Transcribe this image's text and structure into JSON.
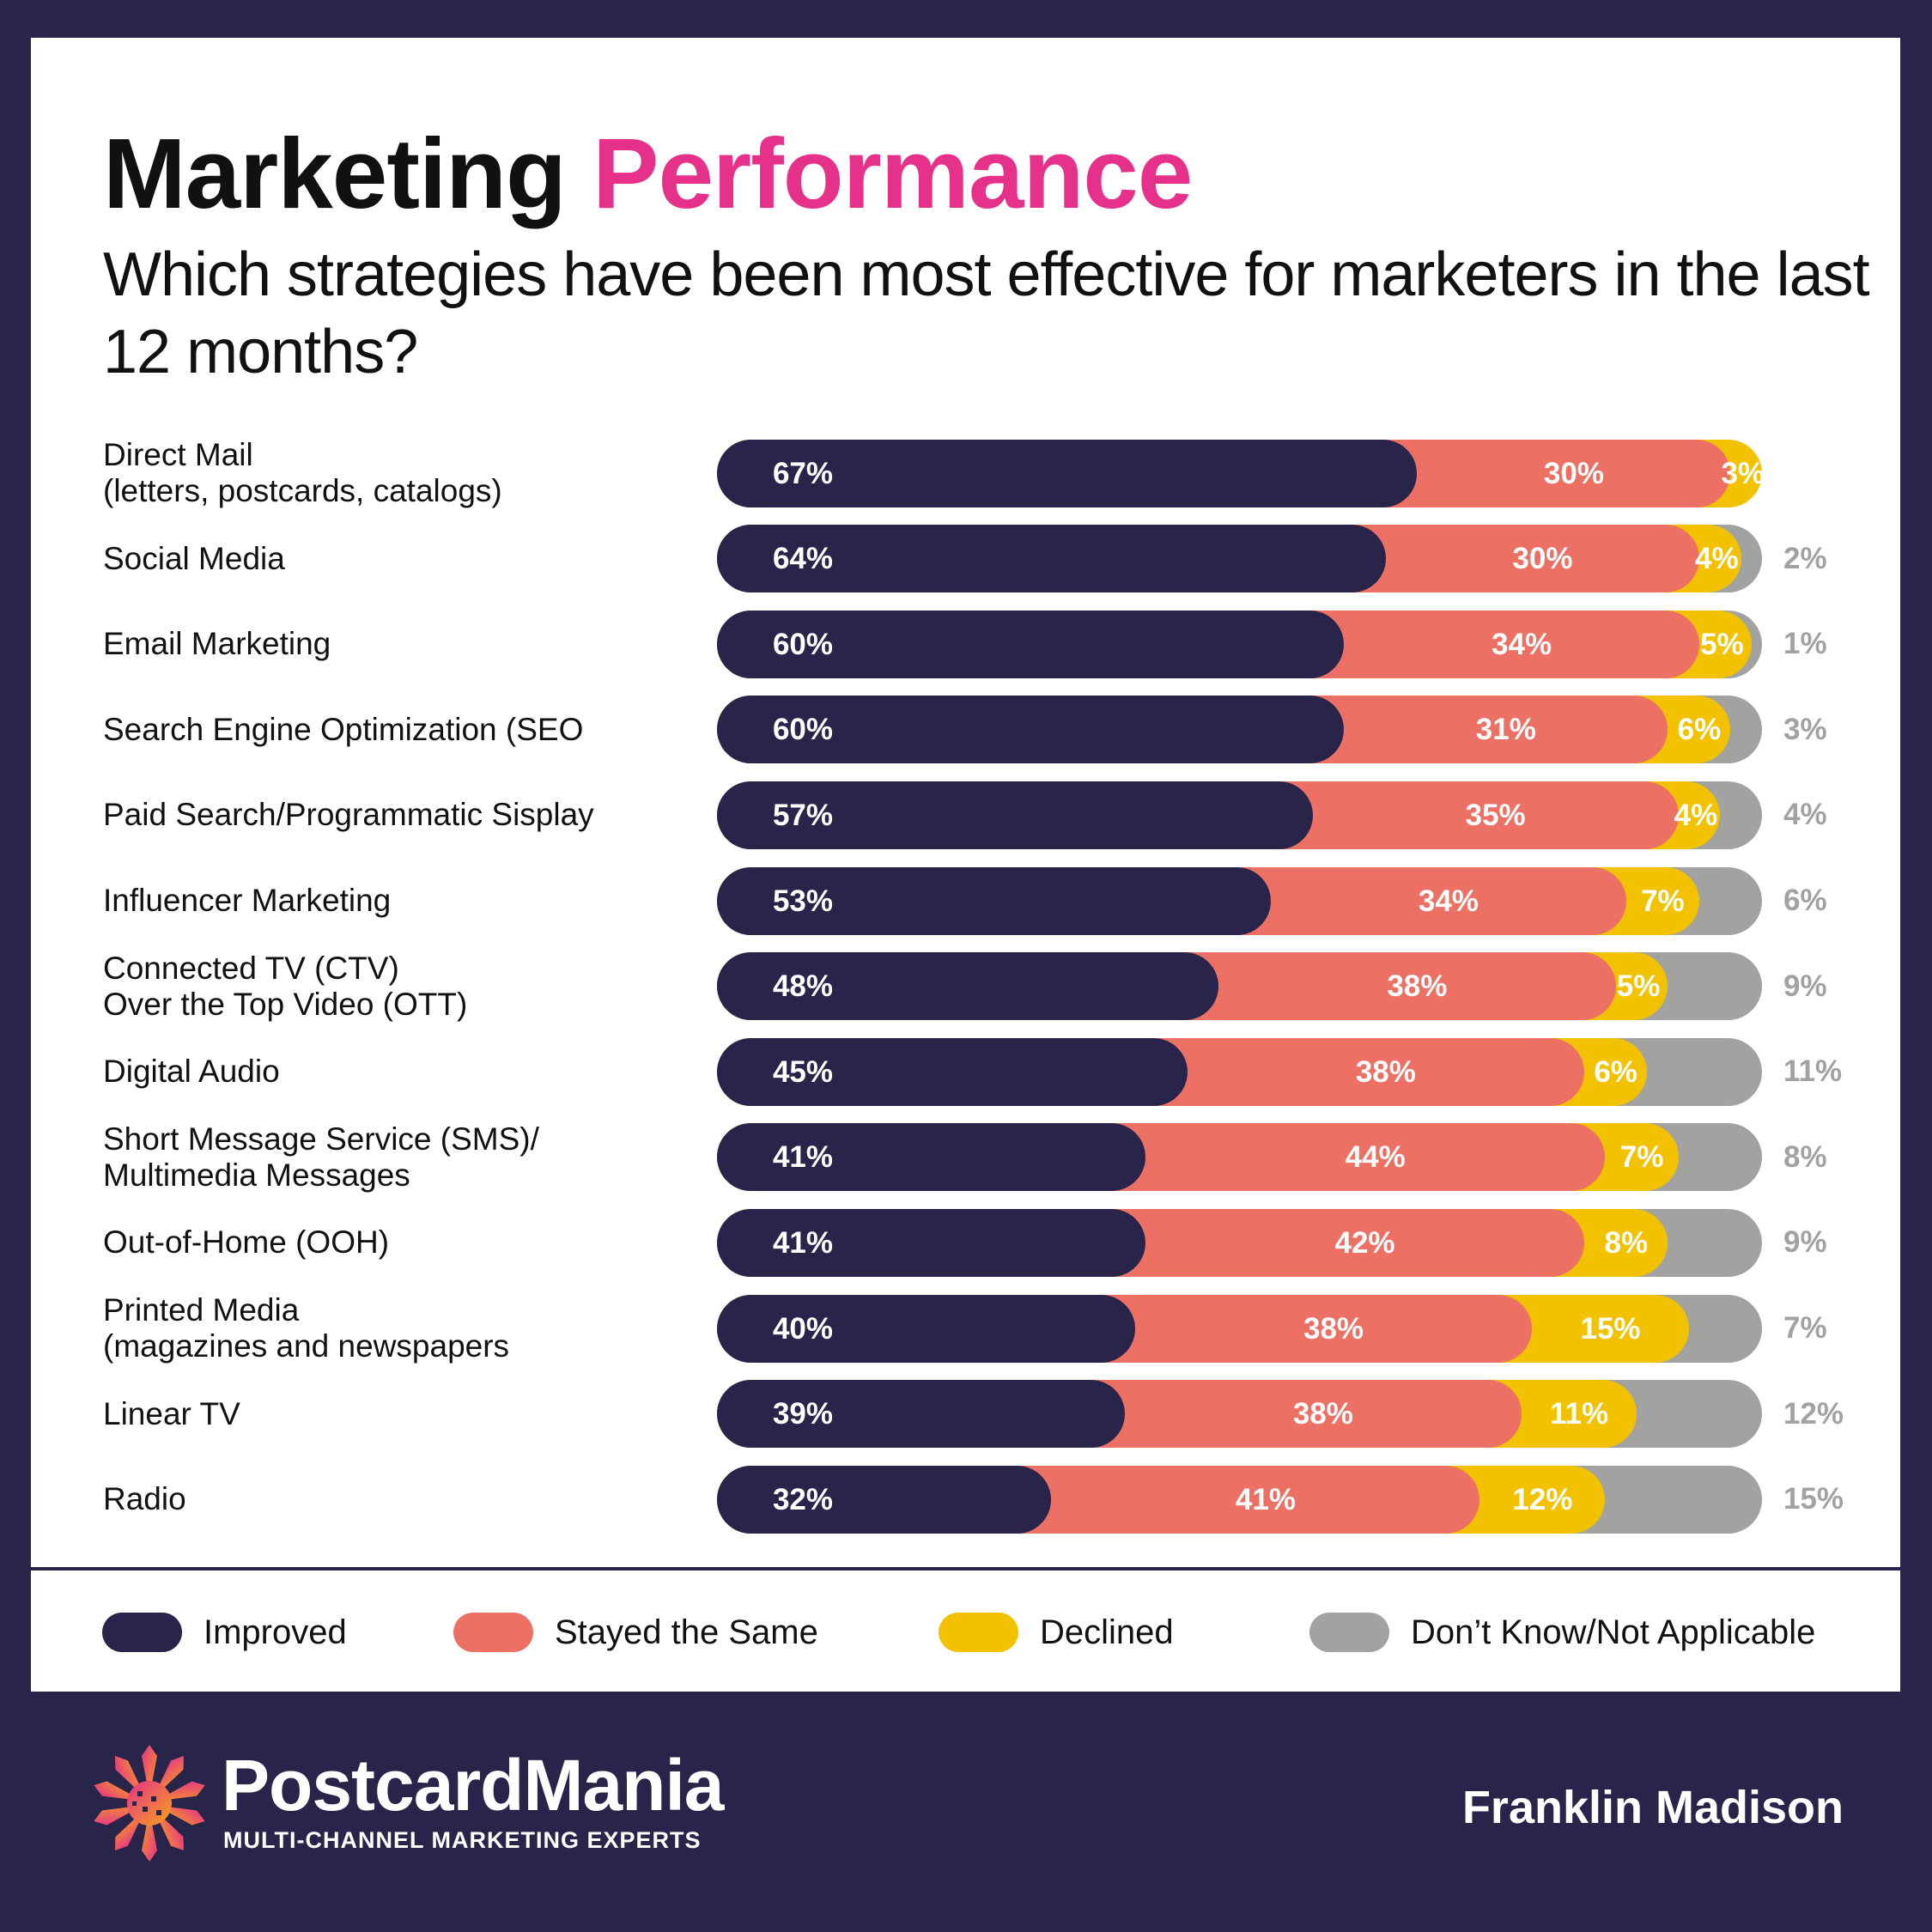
{
  "title": {
    "part1": "Marketing",
    "part2": "Performance"
  },
  "subtitle": "Which strategies have been most effective for marketers in the last 12 months?",
  "colors": {
    "improved": "#29244a",
    "same": "#ec7063",
    "declined": "#f2c200",
    "dontknow": "#a2a3a0",
    "accent": "#e5318a"
  },
  "chart_data": {
    "type": "bar",
    "stacked": true,
    "orientation": "horizontal",
    "categories": [
      "Direct Mail\n(letters, postcards, catalogs)",
      "Social Media",
      "Email Marketing",
      "Search Engine Optimization (SEO",
      "Paid Search/Programmatic Sisplay",
      "Influencer Marketing",
      "Connected TV (CTV)\nOver the Top Video (OTT)",
      "Digital Audio",
      "Short Message Service (SMS)/\nMultimedia Messages",
      "Out-of-Home (OOH)",
      "Printed Media\n(magazines and newspapers",
      "Linear TV",
      "Radio"
    ],
    "series": [
      {
        "name": "Improved",
        "values": [
          67,
          64,
          60,
          60,
          57,
          53,
          48,
          45,
          41,
          41,
          40,
          39,
          32
        ]
      },
      {
        "name": "Stayed the Same",
        "values": [
          30,
          30,
          34,
          31,
          35,
          34,
          38,
          38,
          44,
          42,
          38,
          38,
          41
        ]
      },
      {
        "name": "Declined",
        "values": [
          3,
          4,
          5,
          6,
          4,
          7,
          5,
          6,
          7,
          8,
          15,
          11,
          12
        ]
      },
      {
        "name": "Don’t Know/Not Applicable",
        "values": [
          null,
          2,
          1,
          3,
          4,
          6,
          9,
          11,
          8,
          9,
          7,
          12,
          15
        ]
      }
    ],
    "unit": "%",
    "xlim": [
      0,
      100
    ],
    "legend": "bottom"
  },
  "footer": {
    "brand": "PostcardMania",
    "tagline": "MULTI-CHANNEL MARKETING EXPERTS",
    "client": "Franklin Madison"
  }
}
